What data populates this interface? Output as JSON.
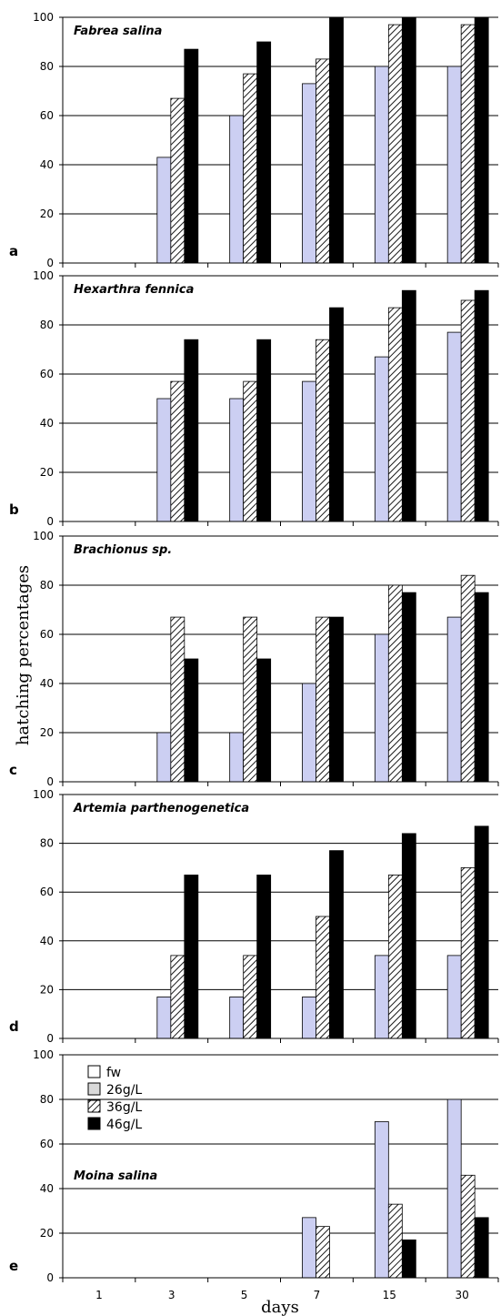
{
  "chart_data": [
    {
      "type": "bar",
      "panel": "a",
      "title": "Fabrea salina",
      "categories": [
        "1",
        "3",
        "5",
        "7",
        "15",
        "30"
      ],
      "ylim": [
        0,
        100
      ],
      "yticks": [
        0,
        20,
        40,
        60,
        80,
        100
      ],
      "grid": true,
      "series": [
        {
          "name": "fw",
          "values": [
            0,
            0,
            0,
            0,
            0,
            0
          ]
        },
        {
          "name": "26g/L",
          "values": [
            0,
            43,
            60,
            73,
            80,
            80
          ]
        },
        {
          "name": "36g/L",
          "values": [
            0,
            67,
            77,
            83,
            97,
            97
          ]
        },
        {
          "name": "46g/L",
          "values": [
            0,
            87,
            90,
            100,
            100,
            100
          ]
        }
      ]
    },
    {
      "type": "bar",
      "panel": "b",
      "title": "Hexarthra fennica",
      "categories": [
        "1",
        "3",
        "5",
        "7",
        "15",
        "30"
      ],
      "ylim": [
        0,
        100
      ],
      "yticks": [
        0,
        20,
        40,
        60,
        80,
        100
      ],
      "grid": true,
      "series": [
        {
          "name": "fw",
          "values": [
            0,
            0,
            0,
            0,
            0,
            0
          ]
        },
        {
          "name": "26g/L",
          "values": [
            0,
            50,
            50,
            57,
            67,
            77
          ]
        },
        {
          "name": "36g/L",
          "values": [
            0,
            57,
            57,
            74,
            87,
            90
          ]
        },
        {
          "name": "46g/L",
          "values": [
            0,
            74,
            74,
            87,
            94,
            94
          ]
        }
      ]
    },
    {
      "type": "bar",
      "panel": "c",
      "title": "Brachionus sp.",
      "categories": [
        "1",
        "3",
        "5",
        "7",
        "15",
        "30"
      ],
      "ylim": [
        0,
        100
      ],
      "yticks": [
        0,
        20,
        40,
        60,
        80,
        100
      ],
      "grid": true,
      "series": [
        {
          "name": "fw",
          "values": [
            0,
            0,
            0,
            0,
            0,
            0
          ]
        },
        {
          "name": "26g/L",
          "values": [
            0,
            20,
            20,
            40,
            60,
            67
          ]
        },
        {
          "name": "36g/L",
          "values": [
            0,
            67,
            67,
            67,
            80,
            84
          ]
        },
        {
          "name": "46g/L",
          "values": [
            0,
            50,
            50,
            67,
            77,
            77
          ]
        }
      ]
    },
    {
      "type": "bar",
      "panel": "d",
      "title": "Artemia parthenogenetica",
      "categories": [
        "1",
        "3",
        "5",
        "7",
        "15",
        "30"
      ],
      "ylim": [
        0,
        100
      ],
      "yticks": [
        0,
        20,
        40,
        60,
        80,
        100
      ],
      "grid": true,
      "series": [
        {
          "name": "fw",
          "values": [
            0,
            0,
            0,
            0,
            0,
            0
          ]
        },
        {
          "name": "26g/L",
          "values": [
            0,
            17,
            17,
            17,
            34,
            34
          ]
        },
        {
          "name": "36g/L",
          "values": [
            0,
            34,
            34,
            50,
            67,
            70
          ]
        },
        {
          "name": "46g/L",
          "values": [
            0,
            67,
            67,
            77,
            84,
            87
          ]
        }
      ]
    },
    {
      "type": "bar",
      "panel": "e",
      "title": "Moina salina",
      "categories": [
        "1",
        "3",
        "5",
        "7",
        "15",
        "30"
      ],
      "ylim": [
        0,
        100
      ],
      "yticks": [
        0,
        20,
        40,
        60,
        80,
        100
      ],
      "grid": true,
      "legend": {
        "placement": "top-left",
        "entries": [
          "fw",
          "26g/L",
          "36g/L",
          "46g/L"
        ]
      },
      "xlabel": "days",
      "series": [
        {
          "name": "fw",
          "values": [
            0,
            0,
            0,
            0,
            0,
            0
          ]
        },
        {
          "name": "26g/L",
          "values": [
            0,
            0,
            0,
            27,
            70,
            80
          ]
        },
        {
          "name": "36g/L",
          "values": [
            0,
            0,
            0,
            23,
            33,
            46
          ]
        },
        {
          "name": "46g/L",
          "values": [
            0,
            0,
            0,
            0,
            17,
            27
          ]
        }
      ]
    }
  ],
  "ylabel": "hatching percentages",
  "series_colors": {
    "fw": "#ffffff",
    "26g/L": "#cccff2",
    "36g/L": "hatched",
    "46g/L": "#000000"
  },
  "legend_swatch_colors": {
    "fw": "#ffffff",
    "26g/L": "#d9d9d9",
    "36g/L": "hatched",
    "46g/L": "#000000"
  }
}
